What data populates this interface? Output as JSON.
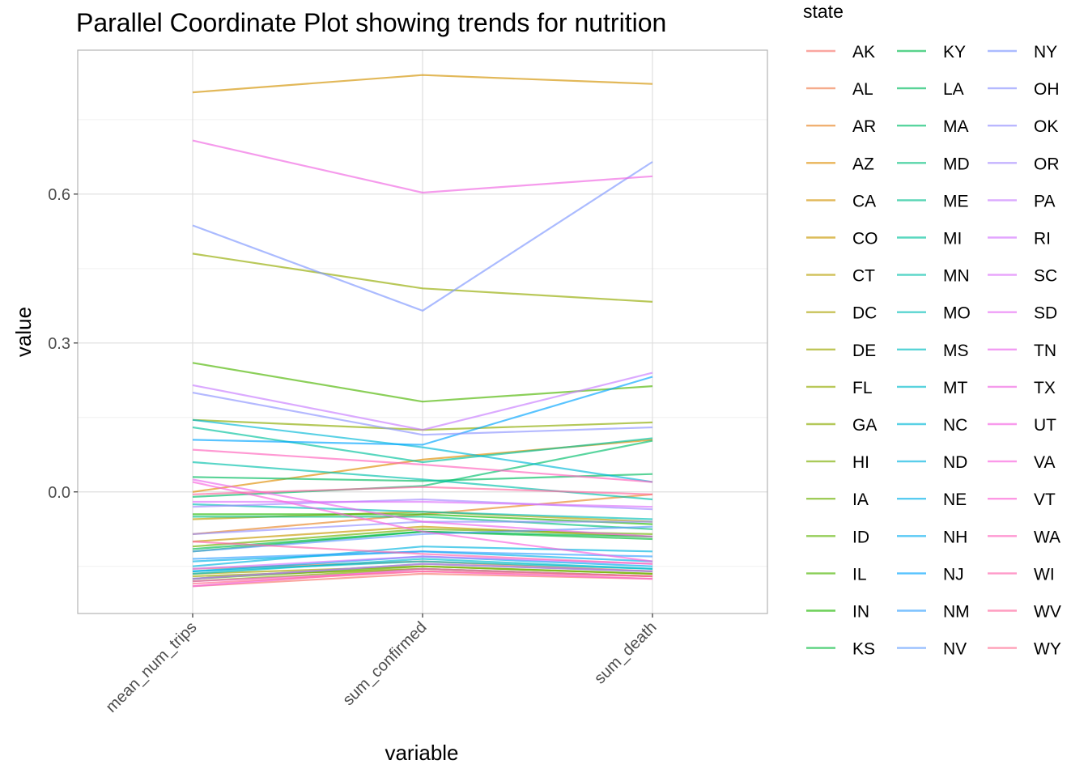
{
  "chart_data": {
    "type": "line",
    "title": "Parallel Coordinate Plot showing trends for nutrition",
    "xlabel": "variable",
    "ylabel": "value",
    "categories": [
      "mean_num_trips",
      "sum_confirmed",
      "sum_death"
    ],
    "y_ticks": [
      0.0,
      0.3,
      0.6
    ],
    "y_tick_labels": [
      "0.0",
      "0.3",
      "0.6"
    ],
    "ylim": [
      -0.245,
      0.89
    ],
    "grid": true,
    "legend": {
      "title": "state",
      "placement": "right",
      "columns": 3
    },
    "series": [
      {
        "name": "AK",
        "color": "#F8766D",
        "values": [
          -0.19,
          -0.165,
          -0.175
        ]
      },
      {
        "name": "AL",
        "color": "#F07E4F",
        "values": [
          -0.155,
          -0.14,
          -0.16
        ]
      },
      {
        "name": "AR",
        "color": "#E88526",
        "values": [
          -0.085,
          -0.045,
          -0.005
        ]
      },
      {
        "name": "AZ",
        "color": "#DE8C00",
        "values": [
          0.0,
          0.065,
          0.105
        ]
      },
      {
        "name": "CA",
        "color": "#D39200",
        "values": [
          0.805,
          0.84,
          0.822
        ]
      },
      {
        "name": "CO",
        "color": "#C79800",
        "values": [
          -0.1,
          -0.07,
          -0.09
        ]
      },
      {
        "name": "CT",
        "color": "#B79F00",
        "values": [
          -0.055,
          -0.04,
          -0.06
        ]
      },
      {
        "name": "DC",
        "color": "#ABA300",
        "values": [
          -0.165,
          -0.15,
          -0.165
        ]
      },
      {
        "name": "DE",
        "color": "#9CA700",
        "values": [
          -0.17,
          -0.155,
          -0.17
        ]
      },
      {
        "name": "FL",
        "color": "#93AA00",
        "values": [
          0.48,
          0.41,
          0.383
        ]
      },
      {
        "name": "GA",
        "color": "#8CAB00",
        "values": [
          0.145,
          0.125,
          0.14
        ]
      },
      {
        "name": "HI",
        "color": "#7CAE00",
        "values": [
          -0.18,
          -0.155,
          -0.17
        ]
      },
      {
        "name": "IA",
        "color": "#6BB100",
        "values": [
          -0.11,
          -0.075,
          -0.085
        ]
      },
      {
        "name": "ID",
        "color": "#5EB300",
        "values": [
          -0.175,
          -0.15,
          -0.165
        ]
      },
      {
        "name": "IL",
        "color": "#4DB600",
        "values": [
          0.26,
          0.182,
          0.213
        ]
      },
      {
        "name": "IN",
        "color": "#1EB800",
        "values": [
          -0.045,
          -0.045,
          -0.065
        ]
      },
      {
        "name": "KS",
        "color": "#00BA38",
        "values": [
          -0.12,
          -0.08,
          -0.095
        ]
      },
      {
        "name": "KY",
        "color": "#00BB4E",
        "values": [
          -0.115,
          -0.08,
          -0.09
        ]
      },
      {
        "name": "LA",
        "color": "#00BC5F",
        "values": [
          0.03,
          0.022,
          0.036
        ]
      },
      {
        "name": "MA",
        "color": "#00BE6C",
        "values": [
          -0.01,
          0.012,
          0.103
        ]
      },
      {
        "name": "MD",
        "color": "#00BF7D",
        "values": [
          -0.05,
          -0.05,
          -0.075
        ]
      },
      {
        "name": "ME",
        "color": "#00C08E",
        "values": [
          -0.175,
          -0.145,
          -0.16
        ]
      },
      {
        "name": "MI",
        "color": "#00C19C",
        "values": [
          0.13,
          0.06,
          0.108
        ]
      },
      {
        "name": "MN",
        "color": "#00C0AA",
        "values": [
          0.06,
          0.025,
          -0.015
        ]
      },
      {
        "name": "MO",
        "color": "#00BFB7",
        "values": [
          -0.025,
          -0.04,
          -0.055
        ]
      },
      {
        "name": "MS",
        "color": "#00BDC2",
        "values": [
          -0.16,
          -0.14,
          -0.155
        ]
      },
      {
        "name": "MT",
        "color": "#00BBCC",
        "values": [
          -0.165,
          -0.135,
          -0.155
        ]
      },
      {
        "name": "NC",
        "color": "#00B8D7",
        "values": [
          0.145,
          0.09,
          0.02
        ]
      },
      {
        "name": "ND",
        "color": "#00B4E0",
        "values": [
          -0.15,
          -0.11,
          -0.12
        ]
      },
      {
        "name": "NE",
        "color": "#00B0EA",
        "values": [
          -0.14,
          -0.12,
          -0.14
        ]
      },
      {
        "name": "NH",
        "color": "#00ACF0",
        "values": [
          -0.16,
          -0.13,
          -0.15
        ]
      },
      {
        "name": "NJ",
        "color": "#00A5FF",
        "values": [
          0.105,
          0.095,
          0.232
        ]
      },
      {
        "name": "NM",
        "color": "#35A2FF",
        "values": [
          -0.135,
          -0.12,
          -0.13
        ]
      },
      {
        "name": "NV",
        "color": "#619CFF",
        "values": [
          -0.12,
          -0.085,
          -0.07
        ]
      },
      {
        "name": "NY",
        "color": "#7E96FF",
        "values": [
          0.537,
          0.365,
          0.665
        ]
      },
      {
        "name": "OH",
        "color": "#8C93FF",
        "values": [
          0.2,
          0.115,
          0.13
        ]
      },
      {
        "name": "OK",
        "color": "#9590FF",
        "values": [
          -0.085,
          -0.06,
          -0.06
        ]
      },
      {
        "name": "OR",
        "color": "#A58AFF",
        "values": [
          -0.03,
          -0.015,
          -0.035
        ]
      },
      {
        "name": "PA",
        "color": "#C77CFF",
        "values": [
          0.215,
          0.125,
          0.24
        ]
      },
      {
        "name": "RI",
        "color": "#D376FF",
        "values": [
          -0.155,
          -0.13,
          -0.145
        ]
      },
      {
        "name": "SC",
        "color": "#DC71FA",
        "values": [
          -0.02,
          -0.02,
          -0.03
        ]
      },
      {
        "name": "SD",
        "color": "#E76BF3",
        "values": [
          -0.175,
          -0.145,
          -0.16
        ]
      },
      {
        "name": "TN",
        "color": "#EB67EC",
        "values": [
          0.025,
          -0.06,
          -0.09
        ]
      },
      {
        "name": "TX",
        "color": "#F066E2",
        "values": [
          0.708,
          0.603,
          0.636
        ]
      },
      {
        "name": "UT",
        "color": "#F564E3",
        "values": [
          -0.19,
          -0.155,
          -0.17
        ]
      },
      {
        "name": "VA",
        "color": "#F962DD",
        "values": [
          0.02,
          -0.08,
          -0.14
        ]
      },
      {
        "name": "VT",
        "color": "#FC61D5",
        "values": [
          -0.18,
          -0.16,
          -0.175
        ]
      },
      {
        "name": "WA",
        "color": "#FF62BC",
        "values": [
          0.085,
          0.055,
          0.02
        ]
      },
      {
        "name": "WI",
        "color": "#FF65AE",
        "values": [
          -0.1,
          -0.125,
          -0.145
        ]
      },
      {
        "name": "WV",
        "color": "#FF689F",
        "values": [
          -0.005,
          0.01,
          -0.005
        ]
      },
      {
        "name": "WY",
        "color": "#FF6C91",
        "values": [
          -0.185,
          -0.16,
          -0.17
        ]
      }
    ]
  }
}
